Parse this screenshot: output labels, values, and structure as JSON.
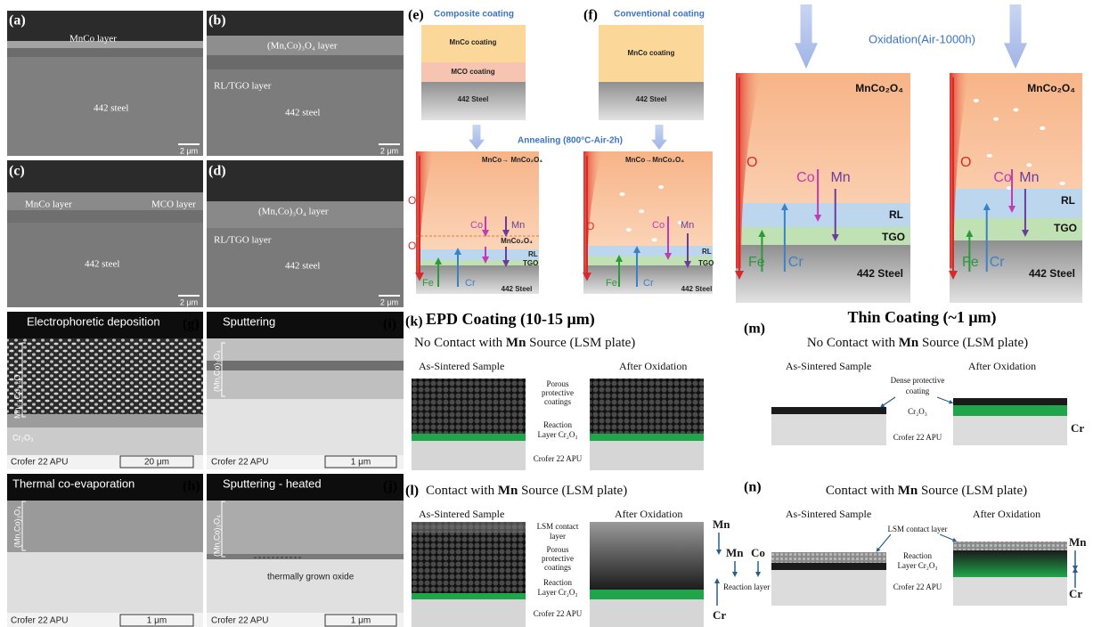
{
  "panel_a": {
    "label": "(a)",
    "layer": "MnCo layer",
    "substrate": "442 steel",
    "scale": "2 μm"
  },
  "panel_b": {
    "label": "(b)",
    "layer": "(Mn,Co)₃O₄ layer",
    "interlayer": "RL/TGO layer",
    "substrate": "442 steel",
    "scale": "2 μm"
  },
  "panel_c": {
    "label": "(c)",
    "layer": "MnCo layer",
    "layer2": "MCO layer",
    "substrate": "442 steel",
    "scale": "2 μm"
  },
  "panel_d": {
    "label": "(d)",
    "layer": "(Mn,Co)₃O₄ layer",
    "interlayer": "RL/TGO layer",
    "substrate": "442 steel",
    "scale": "2 μm"
  },
  "panel_e": {
    "label": "(e)",
    "title": "Composite coating",
    "top": "MnCo coating",
    "middle": "MCO coating",
    "substrate": "442 Steel"
  },
  "panel_f": {
    "label": "(f)",
    "title": "Conventional coating",
    "top": "MnCo coating",
    "substrate": "442 Steel"
  },
  "annealing": "Annealing (800°C-Air-2h)",
  "annealed_e": {
    "reaction": "MnCo→ MnCo₂O₄",
    "o1": "O",
    "o2": "O",
    "co": "Co",
    "mn": "Mn",
    "mid": "MnCo₂O₄",
    "rl": "RL",
    "tgo": "TGO",
    "fe": "Fe",
    "cr": "Cr",
    "substrate": "442 Steel"
  },
  "annealed_f": {
    "reaction": "MnCo→MnCo₂O₄",
    "o": "O",
    "co": "Co",
    "mn": "Mn",
    "rl": "RL",
    "tgo": "TGO",
    "fe": "Fe",
    "cr": "Cr",
    "substrate": "442 Steel"
  },
  "oxidation": "Oxidation(Air-1000h)",
  "oxidized": [
    {
      "top": "MnCo₂O₄",
      "o": "O",
      "co": "Co",
      "mn": "Mn",
      "rl": "RL",
      "tgo": "TGO",
      "fe": "Fe",
      "cr": "Cr",
      "substrate": "442 Steel"
    },
    {
      "top": "MnCo₂O₄",
      "o": "O",
      "co": "Co",
      "mn": "Mn",
      "rl": "RL",
      "tgo": "TGO",
      "fe": "Fe",
      "cr": "Cr",
      "substrate": "442 Steel"
    }
  ],
  "panel_g": {
    "title": "Electrophoretic deposition",
    "label": "(g)",
    "coating": "Mn₁.₅Co₁.₅O₄",
    "oxide": "Cr₂O₃",
    "substrate": "Crofer 22 APU",
    "scale": "20 μm"
  },
  "panel_i": {
    "title": "Sputtering",
    "label": "(i)",
    "coating": "(Mn,Co)₃O₄",
    "substrate": "Crofer 22 APU",
    "scale": "1 μm"
  },
  "panel_h": {
    "title": "Thermal co-evaporation",
    "label": "(h)",
    "coating": "(Mn,Co)₃O₄",
    "substrate": "Crofer 22 APU",
    "scale": "1 μm"
  },
  "panel_j": {
    "title": "Sputtering - heated",
    "label": "(j)",
    "coating": "(Mn,Co)₃O₄",
    "oxide": "thermally grown oxide",
    "substrate": "Crofer 22 APU",
    "scale": "1 μm"
  },
  "panel_k": {
    "label": "(k)",
    "title": "EPD Coating (10-15 μm)",
    "subtitle": [
      "No Contact with ",
      "Mn",
      " Source (LSM plate)"
    ],
    "left": "As-Sintered Sample",
    "right": "After Oxidation",
    "coating": [
      "Porous",
      "protective",
      "coatings"
    ],
    "reaction": [
      "Reaction",
      "Layer Cr₂O₃"
    ],
    "substrate": "Crofer 22 APU"
  },
  "panel_l": {
    "label": "(l)",
    "subtitle": [
      "Contact with ",
      "Mn",
      " Source (LSM plate)"
    ],
    "left": "As-Sintered Sample",
    "right": "After Oxidation",
    "contact": [
      "LSM contact",
      "layer"
    ],
    "coating": [
      "Porous",
      "protective",
      "coatings"
    ],
    "reaction": [
      "Reaction",
      "Layer Cr₂O₃"
    ],
    "substrate": "Crofer 22 APU",
    "mn1": "Mn",
    "mn2": "Mn",
    "co": "Co",
    "reaction_layer": "Reaction layer",
    "cr": "Cr"
  },
  "panel_m": {
    "label": "(m)",
    "title": "Thin Coating (~1 μm)",
    "subtitle": [
      "No Contact with ",
      "Mn",
      " Source (LSM plate)"
    ],
    "left": "As-Sintered Sample",
    "right": "After Oxidation",
    "coating": [
      "Dense protective",
      "coating"
    ],
    "oxide": "Cr₂O₃",
    "substrate": "Crofer 22 APU",
    "cr": "Cr"
  },
  "panel_n": {
    "label": "(n)",
    "subtitle": [
      "Contact with ",
      "Mn",
      " Source (LSM plate)"
    ],
    "left": "As-Sintered Sample",
    "right": "After Oxidation",
    "contact": "LSM contact layer",
    "reaction": [
      "Reaction",
      "Layer Cr₂O₃"
    ],
    "substrate": "Crofer 22 APU",
    "mn": "Mn",
    "cr": "Cr"
  }
}
